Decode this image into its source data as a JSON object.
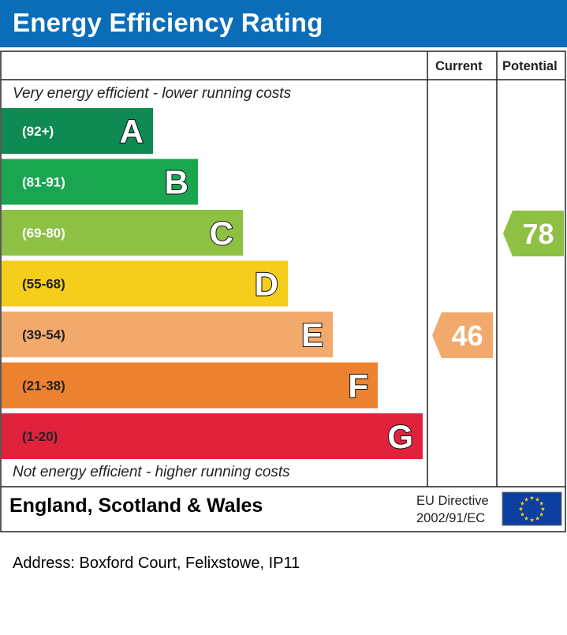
{
  "header": {
    "title": "Energy Efficiency Rating"
  },
  "columns": {
    "current": "Current",
    "potential": "Potential"
  },
  "notes": {
    "top": "Very energy efficient - lower running costs",
    "bottom": "Not energy efficient - higher running costs"
  },
  "footer": {
    "country": "England, Scotland & Wales",
    "directive_line1": "EU Directive",
    "directive_line2": "2002/91/EC"
  },
  "address": "Address: Boxford Court, Felixstowe, IP11",
  "chart_data": {
    "type": "bar",
    "title": "Energy Efficiency Rating",
    "categories": [
      "A",
      "B",
      "C",
      "D",
      "E",
      "F",
      "G"
    ],
    "ranges": [
      "(92+)",
      "(81-91)",
      "(69-80)",
      "(55-68)",
      "(39-54)",
      "(21-38)",
      "(1-20)"
    ],
    "colors": [
      "#0f8a52",
      "#1aa651",
      "#8dc043",
      "#f5ce1b",
      "#f2aa6c",
      "#ec8230",
      "#e1223c"
    ],
    "current": {
      "value": 46,
      "band": "E",
      "color": "#f2aa6c"
    },
    "potential": {
      "value": 78,
      "band": "C",
      "color": "#8dc043"
    }
  }
}
